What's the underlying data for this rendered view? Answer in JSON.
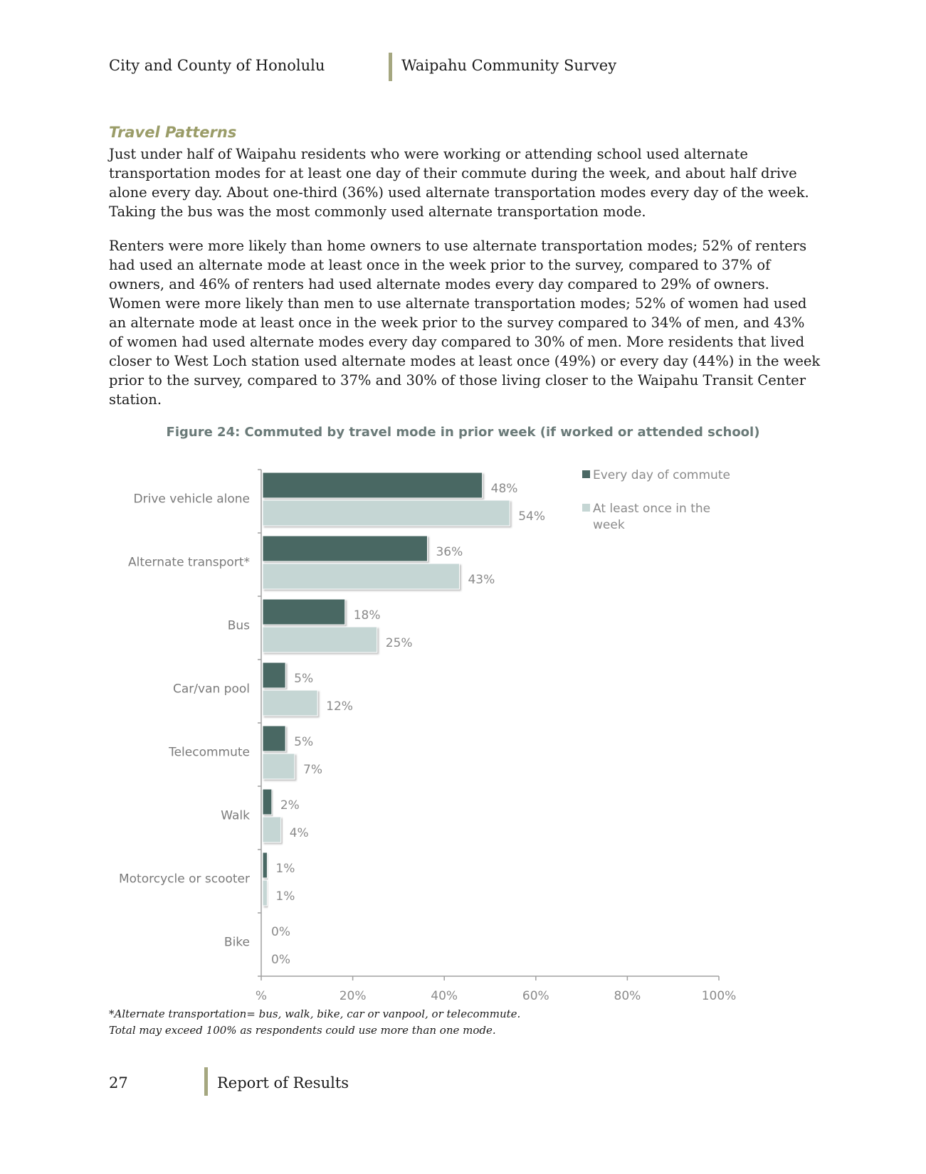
{
  "header": {
    "left": "City and County of Honolulu",
    "right": "Waipahu Community Survey"
  },
  "section": {
    "title": "Travel Patterns",
    "paragraph1": "Just under half of Waipahu residents who were working or attending school used alternate transportation modes for at least one day of their commute during the week, and about half drive alone every day. About one-third (36%) used alternate transportation modes every day of the week. Taking the bus was the most commonly used alternate transportation mode.",
    "paragraph2": "Renters were more likely than home owners to use alternate transportation modes; 52% of renters had used an alternate mode at least once in the week prior to the survey, compared to 37% of owners, and 46% of renters had used alternate modes every day compared to 29% of owners. Women were more likely than men to use alternate transportation modes; 52% of women had used an alternate mode at least once in the week prior to the survey compared to 34% of men, and 43% of women had used alternate modes every day compared to 30% of men.  More residents that lived closer to West Loch station used alternate modes at least once (49%) or every day (44%) in the week prior to the survey, compared to 37% and 30% of those living closer to the Waipahu Transit Center station."
  },
  "chart_data": {
    "type": "bar",
    "orientation": "horizontal",
    "title": "Figure 24: Commuted by travel mode in prior week (if worked or attended school)",
    "categories": [
      "Drive vehicle alone",
      "Alternate transport*",
      "Bus",
      "Car/van pool",
      "Telecommute",
      "Walk",
      "Motorcycle or scooter",
      "Bike"
    ],
    "series": [
      {
        "name": "Every day of commute",
        "color": "#4a6864",
        "values": [
          48,
          36,
          18,
          5,
          5,
          2,
          1,
          0
        ],
        "labels": [
          "48%",
          "36%",
          "18%",
          "5%",
          "5%",
          "2%",
          "1%",
          "0%"
        ]
      },
      {
        "name": "At least once in the week",
        "color": "#c5d6d4",
        "values": [
          54,
          43,
          25,
          12,
          7,
          4,
          1,
          0
        ],
        "labels": [
          "54%",
          "43%",
          "25%",
          "12%",
          "7%",
          "4%",
          "1%",
          "0%"
        ]
      }
    ],
    "xlim": [
      0,
      100
    ],
    "xticks": [
      0,
      20,
      40,
      60,
      80,
      100
    ],
    "xtick_labels": [
      "%",
      "20%",
      "40%",
      "60%",
      "80%",
      "100%"
    ],
    "legend": "top-right",
    "grid": false
  },
  "footnotes": {
    "line1": "*Alternate transportation= bus, walk, bike, car or vanpool, or telecommute.",
    "line2": "Total may exceed 100% as respondents could use more than one mode."
  },
  "footer": {
    "page": "27",
    "label": "Report of Results"
  }
}
